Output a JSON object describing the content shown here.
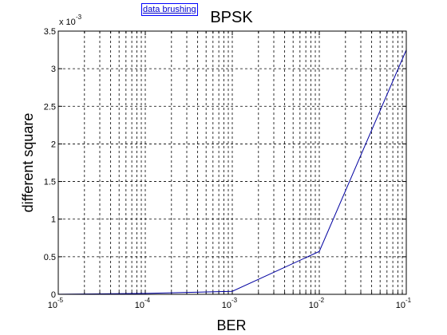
{
  "tooltip": {
    "label": "data brushing"
  },
  "chart_data": {
    "type": "line",
    "title": "BPSK",
    "xlabel": "BER",
    "ylabel": "different square",
    "xscale": "log",
    "x": [
      1e-05,
      0.0001,
      0.001,
      0.01,
      0.1
    ],
    "series": [
      {
        "values": [
          1.2e-06,
          1.2e-05,
          4e-05,
          0.00057,
          0.00325
        ]
      }
    ],
    "xlim": [
      1e-05,
      0.1
    ],
    "ylim": [
      0,
      0.0035
    ],
    "y_scale_note": {
      "base": "x 10",
      "exp": "-3"
    },
    "x_ticks": [
      {
        "value": 1e-05,
        "base": "10",
        "exp": "-5"
      },
      {
        "value": 0.0001,
        "base": "10",
        "exp": "-4"
      },
      {
        "value": 0.001,
        "base": "10",
        "exp": "-3"
      },
      {
        "value": 0.01,
        "base": "10",
        "exp": "-2"
      },
      {
        "value": 0.1,
        "base": "10",
        "exp": "-1"
      }
    ],
    "y_ticks": [
      {
        "value": 0,
        "label": "0"
      },
      {
        "value": 0.0005,
        "label": "0.5"
      },
      {
        "value": 0.001,
        "label": "1"
      },
      {
        "value": 0.0015,
        "label": "1.5"
      },
      {
        "value": 0.002,
        "label": "2"
      },
      {
        "value": 0.0025,
        "label": "2.5"
      },
      {
        "value": 0.003,
        "label": "3"
      },
      {
        "value": 0.0035,
        "label": "3.5"
      }
    ],
    "grid": true,
    "colors": {
      "line": "#0000a0",
      "grid": "#000000",
      "axes": "#000000"
    }
  }
}
